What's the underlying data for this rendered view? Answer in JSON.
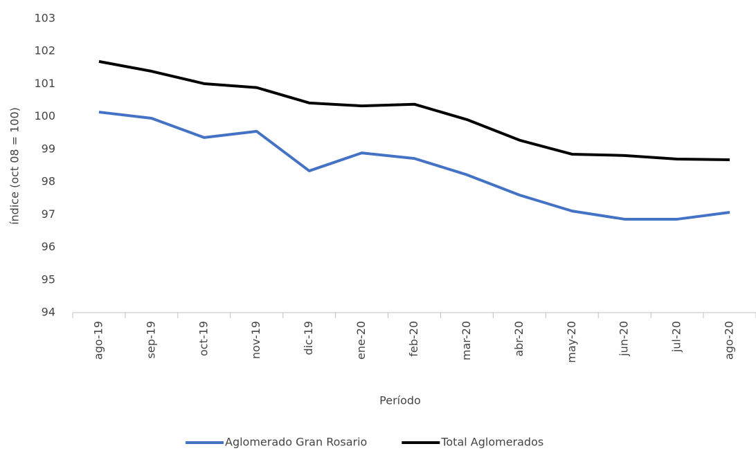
{
  "chart_data": {
    "type": "line",
    "x_label": "Período",
    "y_label": "índice (oct 08 = 100)",
    "categories": [
      "ago-19",
      "sep-19",
      "oct-19",
      "nov-19",
      "dic-19",
      "ene-20",
      "feb-20",
      "mar-20",
      "abr-20",
      "may-20",
      "jun-20",
      "jul-20",
      "ago-20"
    ],
    "series": [
      {
        "name": "Aglomerado Gran Rosario",
        "color": "#4472c4",
        "values": [
          100.14,
          99.95,
          99.36,
          99.55,
          98.34,
          98.89,
          98.72,
          98.22,
          97.6,
          97.11,
          96.86,
          96.86,
          97.07
        ]
      },
      {
        "name": "Total Aglomerados",
        "color": "#000000",
        "values": [
          101.69,
          101.39,
          101.01,
          100.89,
          100.42,
          100.33,
          100.38,
          99.91,
          99.28,
          98.85,
          98.81,
          98.7,
          98.68
        ]
      }
    ],
    "ylim": [
      94,
      103
    ],
    "yticks": [
      94,
      95,
      96,
      97,
      98,
      99,
      100,
      101,
      102,
      103
    ],
    "grid": false,
    "legend": "bottom"
  }
}
